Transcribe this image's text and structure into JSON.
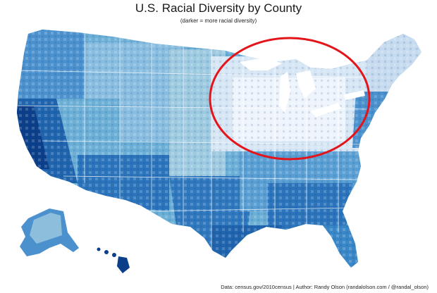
{
  "header": {
    "title": "U.S. Racial Diversity by County",
    "subtitle": "(darker = more racial diversity)"
  },
  "footer": {
    "credit": "Data: census.gov/2010census | Author: Randy Olson (randalolson.com / @randal_olson)"
  },
  "palette": {
    "lightest": "#f2f6fc",
    "light": "#c6dbef",
    "mid_light": "#9ecae1",
    "mid": "#6baed6",
    "mid_dark": "#3a87c8",
    "dark": "#1f64ad",
    "darkest": "#0b3f8a",
    "annotation": "#e3151b"
  },
  "annotation": {
    "shape": "ellipse",
    "highlights": "Great Lakes / Midwest low-diversity region"
  }
}
